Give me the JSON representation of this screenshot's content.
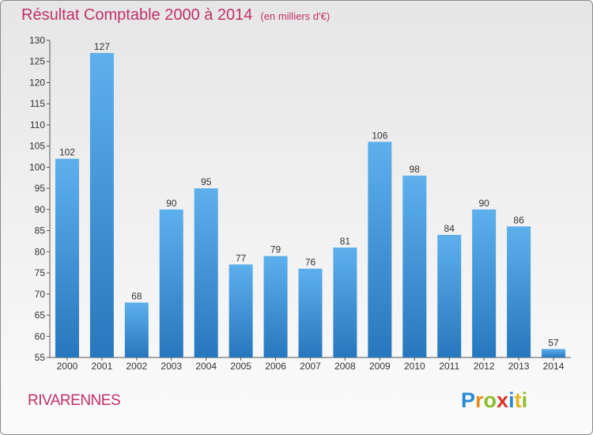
{
  "title": "Résultat Comptable 2000 à 2014",
  "subtitle": "(en milliers d'€)",
  "commune": "RIVARENNES",
  "logo": {
    "p": "P",
    "r": "r",
    "o": "o",
    "x": "x",
    "i1": "i",
    "t": "t",
    "i2": "i"
  },
  "chart_data": {
    "type": "bar",
    "title": "Résultat Comptable 2000 à 2014",
    "subtitle": "(en milliers d'€)",
    "categories": [
      "2000",
      "2001",
      "2002",
      "2003",
      "2004",
      "2005",
      "2006",
      "2007",
      "2008",
      "2009",
      "2010",
      "2011",
      "2012",
      "2013",
      "2014"
    ],
    "values": [
      102,
      127,
      68,
      90,
      95,
      77,
      79,
      76,
      81,
      106,
      98,
      84,
      90,
      86,
      57
    ],
    "ylim": [
      55,
      130
    ],
    "yticks": [
      55,
      60,
      65,
      70,
      75,
      80,
      85,
      90,
      95,
      100,
      105,
      110,
      115,
      120,
      125,
      130
    ],
    "grid": false,
    "bar_color": "#3a8fd6"
  }
}
